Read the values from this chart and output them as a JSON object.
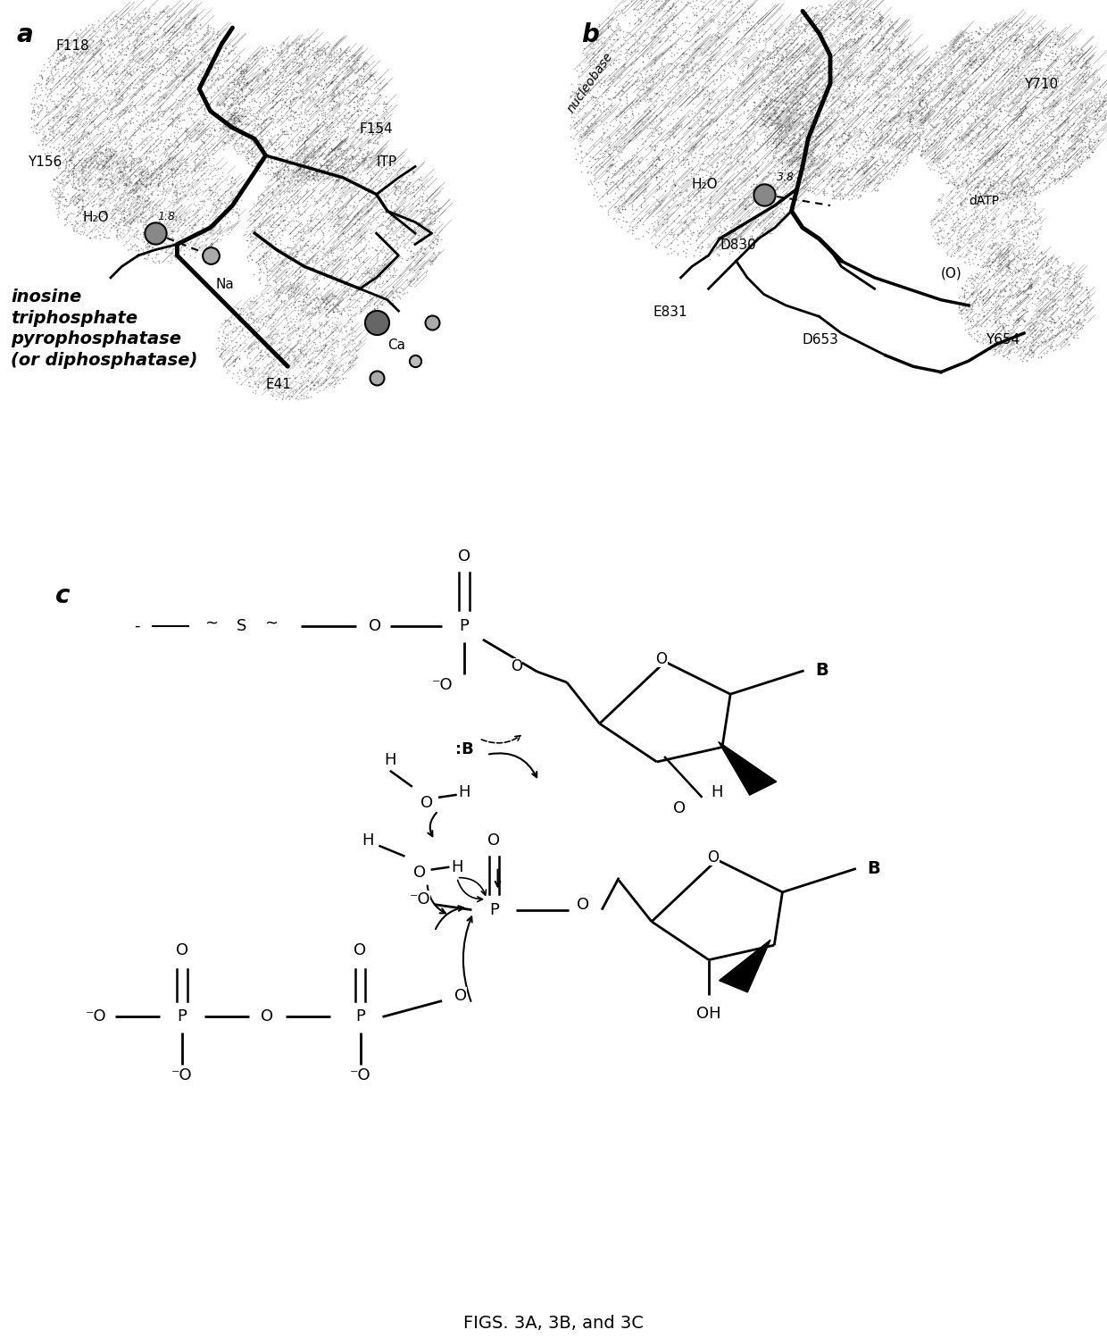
{
  "figure_width": 12.4,
  "figure_height": 14.98,
  "background_color": "#ffffff",
  "panel_a_label": "a",
  "panel_b_label": "b",
  "panel_c_label": "c",
  "label_fontsize": 20,
  "caption": "FIGS. 3A, 3B, and 3C",
  "caption_fontsize": 14,
  "annot_fontsize": 11,
  "bold_text": "inosine\ntriphosphate\npyrophosphatase\n(or diphosphatase)",
  "bold_fontsize": 14
}
